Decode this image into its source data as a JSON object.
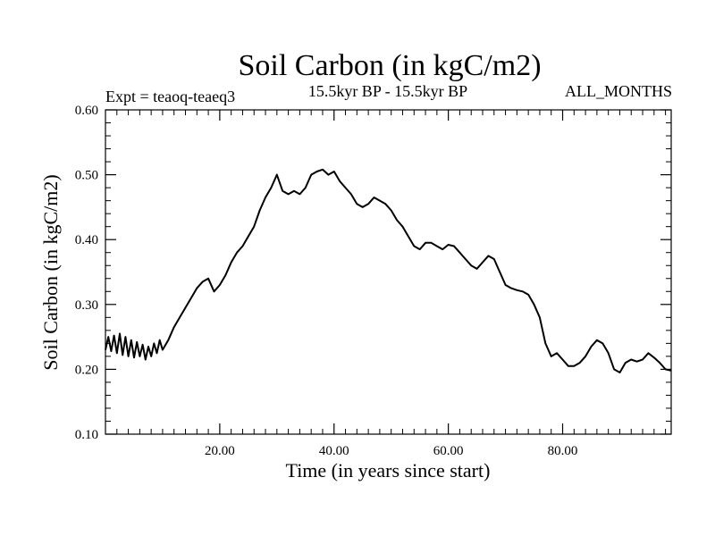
{
  "chart_data": {
    "type": "line",
    "title": "Soil Carbon (in kgC/m2)",
    "subtitle_left": "Expt = teaoq-teaeq3",
    "subtitle_center": "15.5kyr BP - 15.5kyr BP",
    "subtitle_right": "ALL_MONTHS",
    "xlabel": "Time (in years since start)",
    "ylabel": "Soil Carbon (in kgC/m2)",
    "xlim": [
      0,
      99
    ],
    "ylim": [
      0.1,
      0.6
    ],
    "x_ticks": [
      20,
      40,
      60,
      80
    ],
    "x_tick_labels": [
      "20.00",
      "40.00",
      "60.00",
      "80.00"
    ],
    "y_ticks": [
      0.1,
      0.2,
      0.3,
      0.4,
      0.5,
      0.6
    ],
    "y_tick_labels": [
      "0.10",
      "0.20",
      "0.30",
      "0.40",
      "0.50",
      "0.60"
    ],
    "grid": false,
    "series": [
      {
        "name": "Soil Carbon",
        "color": "#000000",
        "x": [
          0,
          0.5,
          1,
          1.5,
          2,
          2.5,
          3,
          3.5,
          4,
          4.5,
          5,
          5.5,
          6,
          6.5,
          7,
          7.5,
          8,
          8.5,
          9,
          9.5,
          10,
          11,
          12,
          13,
          14,
          15,
          16,
          17,
          18,
          19,
          20,
          21,
          22,
          23,
          24,
          25,
          26,
          27,
          28,
          29,
          30,
          31,
          32,
          33,
          34,
          35,
          36,
          37,
          38,
          39,
          40,
          41,
          42,
          43,
          44,
          45,
          46,
          47,
          48,
          49,
          50,
          51,
          52,
          53,
          54,
          55,
          56,
          57,
          58,
          59,
          60,
          61,
          62,
          63,
          64,
          65,
          66,
          67,
          68,
          69,
          70,
          71,
          72,
          73,
          74,
          75,
          76,
          77,
          78,
          79,
          80,
          81,
          82,
          83,
          84,
          85,
          86,
          87,
          88,
          89,
          90,
          91,
          92,
          93,
          94,
          95,
          96,
          97,
          98,
          99
        ],
        "values": [
          0.23,
          0.25,
          0.228,
          0.252,
          0.225,
          0.255,
          0.222,
          0.25,
          0.22,
          0.245,
          0.218,
          0.242,
          0.22,
          0.238,
          0.215,
          0.235,
          0.22,
          0.24,
          0.225,
          0.245,
          0.23,
          0.245,
          0.265,
          0.28,
          0.295,
          0.31,
          0.325,
          0.335,
          0.34,
          0.32,
          0.33,
          0.345,
          0.365,
          0.38,
          0.39,
          0.405,
          0.42,
          0.445,
          0.465,
          0.48,
          0.5,
          0.475,
          0.47,
          0.475,
          0.47,
          0.48,
          0.5,
          0.505,
          0.508,
          0.5,
          0.505,
          0.49,
          0.48,
          0.47,
          0.455,
          0.45,
          0.455,
          0.465,
          0.46,
          0.455,
          0.445,
          0.43,
          0.42,
          0.405,
          0.39,
          0.385,
          0.395,
          0.395,
          0.39,
          0.385,
          0.392,
          0.39,
          0.38,
          0.37,
          0.36,
          0.355,
          0.365,
          0.375,
          0.37,
          0.35,
          0.33,
          0.325,
          0.322,
          0.32,
          0.315,
          0.3,
          0.28,
          0.24,
          0.22,
          0.225,
          0.215,
          0.205,
          0.205,
          0.21,
          0.22,
          0.235,
          0.245,
          0.24,
          0.225,
          0.2,
          0.195,
          0.21,
          0.215,
          0.212,
          0.215,
          0.225,
          0.218,
          0.21,
          0.2,
          0.198
        ]
      }
    ]
  }
}
